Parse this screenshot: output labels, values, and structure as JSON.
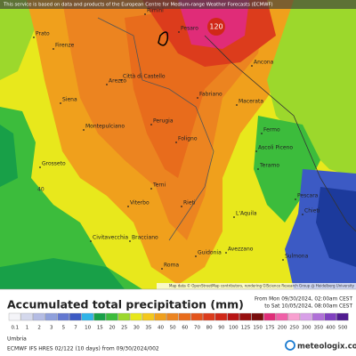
{
  "banner": "This service is based on data and products of the European Centre for Medium-range Weather Forecasts (ECMWF)",
  "map_labels": {
    "max": "120",
    "local": "40"
  },
  "cities": [
    "Rimini",
    "Pesaro",
    "Ancona",
    "Prato",
    "Firenze",
    "Arezzo",
    "Città di Castello",
    "Siena",
    "Montepulciano",
    "Perugia",
    "Foligno",
    "Fabriano",
    "Macerata",
    "Fermo",
    "Ascoli Piceno",
    "Teramo",
    "Grosseto",
    "Terni",
    "Viterbo",
    "Rieti",
    "L'Aquila",
    "Pescara",
    "Chieti",
    "Civitavecchia",
    "Bracciano",
    "Roma",
    "Guidonia",
    "Avezzano",
    "Sulmona"
  ],
  "attribution": "Map data © OpenStreetMap contributors, rendering GIScience Research Group @ Heidelberg University",
  "title": "Accumulated total precipitation (mm)",
  "period": {
    "from": "From Mon 09/30/2024, 02:00am CEST",
    "to": "to Sat 10/05/2024, 08:00am CEST"
  },
  "legend": {
    "values": [
      0.1,
      1,
      2,
      3,
      5,
      7,
      10,
      15,
      20,
      25,
      30,
      35,
      40,
      50,
      60,
      70,
      80,
      90,
      100,
      125,
      150,
      175,
      200,
      250,
      300,
      350,
      400,
      500
    ],
    "colors": [
      "#f4f4f8",
      "#d4d8ec",
      "#b4bce4",
      "#8fa0dc",
      "#6478d0",
      "#3c5ac4",
      "#30b4e8",
      "#18a048",
      "#3cbc3c",
      "#9cd82c",
      "#e8e81c",
      "#f4c81c",
      "#f0a01c",
      "#ec8420",
      "#e86c1c",
      "#e4541c",
      "#dc3c1c",
      "#d02818",
      "#b81414",
      "#981010",
      "#780c0c",
      "#e02c78",
      "#f060a8",
      "#f8a0d0",
      "#d8a0e8",
      "#b070d8",
      "#8040c0",
      "#501c90"
    ]
  },
  "footer": {
    "region": "Umbria",
    "model": "ECMWF IFS HRES 02/122 (10 days) from 09/30/2024/002",
    "brand": "meteologix.com"
  }
}
